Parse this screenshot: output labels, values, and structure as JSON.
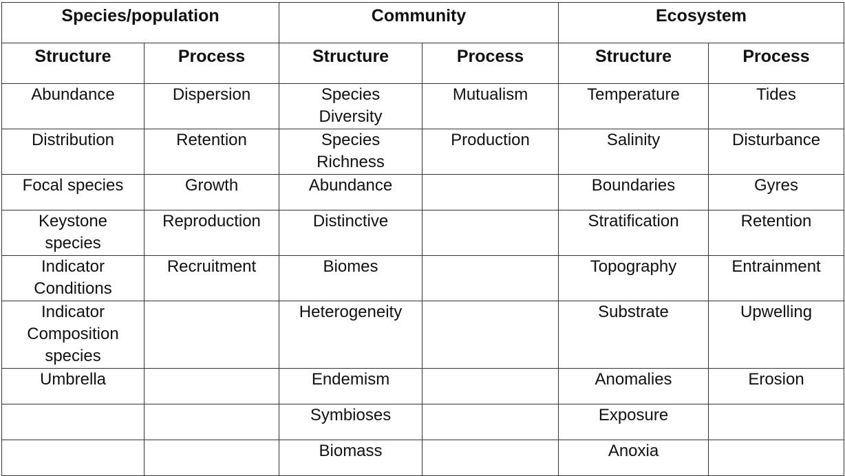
{
  "groups": [
    {
      "label": "Species/population"
    },
    {
      "label": "Community"
    },
    {
      "label": "Ecosystem"
    }
  ],
  "subheaders": [
    "Structure",
    "Process",
    "Structure",
    "Process",
    "Structure",
    "Process"
  ],
  "rows": [
    [
      "Abundance",
      "Dispersion",
      "Species\nDiversity",
      "Mutualism",
      "Temperature",
      "Tides"
    ],
    [
      "Distribution",
      "Retention",
      "Species\nRichness",
      "Production",
      "Salinity",
      "Disturbance"
    ],
    [
      "Focal species",
      "Growth",
      "Abundance",
      "",
      "Boundaries",
      "Gyres"
    ],
    [
      "Keystone\nspecies",
      "Reproduction",
      "Distinctive",
      "",
      "Stratification",
      "Retention"
    ],
    [
      "Indicator\nConditions",
      "Recruitment",
      "Biomes",
      "",
      "Topography",
      "Entrainment"
    ],
    [
      "Indicator\nComposition\nspecies",
      "",
      "Heterogeneity",
      "",
      "Substrate",
      "Upwelling"
    ],
    [
      "Umbrella",
      "",
      "Endemism",
      "",
      "Anomalies",
      "Erosion"
    ],
    [
      "",
      "",
      "Symbioses",
      "",
      "Exposure",
      ""
    ],
    [
      "",
      "",
      "Biomass",
      "",
      "Anoxia",
      ""
    ]
  ]
}
